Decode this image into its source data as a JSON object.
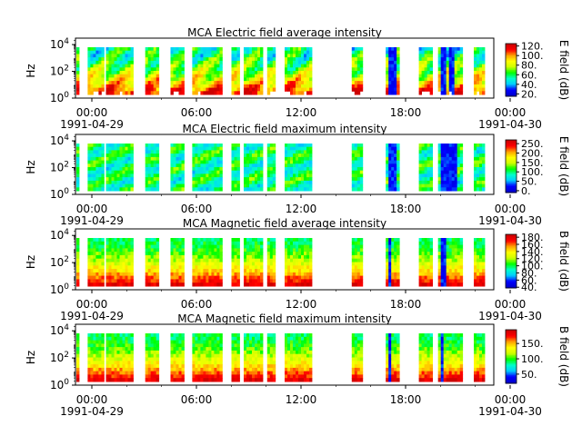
{
  "chart_data": [
    {
      "type": "heatmap",
      "title": "MCA  Electric field average intensity",
      "ylabel": "Hz",
      "colorbar_label": "E field (dB)",
      "colorbar_ticks": [
        "20.",
        "40.",
        "60.",
        "80.",
        "100.",
        "120."
      ],
      "colorbar_range": [
        15,
        125
      ],
      "yticks": [
        "10",
        "10",
        "10"
      ],
      "yticks_exp": [
        "0",
        "2",
        "4"
      ],
      "xticks": [
        "00:00",
        "06:00",
        "12:00",
        "18:00",
        "00:00"
      ],
      "xdates": [
        "1991-04-29",
        "1991-04-30"
      ],
      "xlim": [
        "1991-04-29 00:00",
        "1991-04-30 00:00"
      ],
      "ylim": [
        1,
        30000
      ]
    },
    {
      "type": "heatmap",
      "title": "MCA  Electric field maximum intensity",
      "ylabel": "Hz",
      "colorbar_label": "E field (dB)",
      "colorbar_ticks": [
        "0.",
        "50.",
        "100.",
        "150.",
        "200.",
        "250."
      ],
      "colorbar_range": [
        -10,
        270
      ],
      "yticks": [
        "10",
        "10",
        "10"
      ],
      "yticks_exp": [
        "0",
        "2",
        "4"
      ],
      "xticks": [
        "00:00",
        "06:00",
        "12:00",
        "18:00",
        "00:00"
      ],
      "xdates": [
        "1991-04-29",
        "1991-04-30"
      ],
      "xlim": [
        "1991-04-29 00:00",
        "1991-04-30 00:00"
      ],
      "ylim": [
        1,
        30000
      ]
    },
    {
      "type": "heatmap",
      "title": "MCA  Magnetic field average intensity",
      "ylabel": "Hz",
      "colorbar_label": "B field (dB)",
      "colorbar_ticks": [
        "40.",
        "60.",
        "80.",
        "100.",
        "120.",
        "140.",
        "160.",
        "180."
      ],
      "colorbar_range": [
        38,
        188
      ],
      "yticks": [
        "10",
        "10",
        "10"
      ],
      "yticks_exp": [
        "0",
        "2",
        "4"
      ],
      "xticks": [
        "00:00",
        "06:00",
        "12:00",
        "18:00",
        "00:00"
      ],
      "xdates": [
        "1991-04-29",
        "1991-04-30"
      ],
      "xlim": [
        "1991-04-29 00:00",
        "1991-04-30 00:00"
      ],
      "ylim": [
        1,
        30000
      ]
    },
    {
      "type": "heatmap",
      "title": "MCA  Magnetic field maximum intensity",
      "ylabel": "Hz",
      "colorbar_label": "B field (dB)",
      "colorbar_ticks": [
        "50.",
        "100.",
        "150."
      ],
      "colorbar_range": [
        20,
        195
      ],
      "yticks": [
        "10",
        "10",
        "10"
      ],
      "yticks_exp": [
        "0",
        "2",
        "4"
      ],
      "xticks": [
        "00:00",
        "06:00",
        "12:00",
        "18:00",
        "00:00"
      ],
      "xdates": [
        "1991-04-29",
        "1991-04-30"
      ],
      "xlim": [
        "1991-04-29 00:00",
        "1991-04-30 00:00"
      ],
      "ylim": [
        1,
        30000
      ]
    }
  ],
  "data_segments_hours": [
    [
      0.05,
      0.2
    ],
    [
      0.7,
      1.5
    ],
    [
      1.75,
      3.25
    ],
    [
      4.0,
      4.75
    ],
    [
      5.45,
      6.1
    ],
    [
      6.7,
      8.4
    ],
    [
      8.95,
      9.3
    ],
    [
      9.65,
      10.6
    ],
    [
      11.0,
      11.45
    ],
    [
      12.0,
      13.5
    ],
    [
      15.85,
      16.45
    ],
    [
      17.8,
      18.5
    ],
    [
      19.7,
      20.4
    ],
    [
      20.8,
      22.2
    ],
    [
      22.85,
      23.35
    ]
  ],
  "colormap": [
    "#0000cc",
    "#0000ff",
    "#00ccff",
    "#00ffcc",
    "#00ff00",
    "#ccff00",
    "#ffff00",
    "#ffa500",
    "#ff0000",
    "#cc0000"
  ]
}
